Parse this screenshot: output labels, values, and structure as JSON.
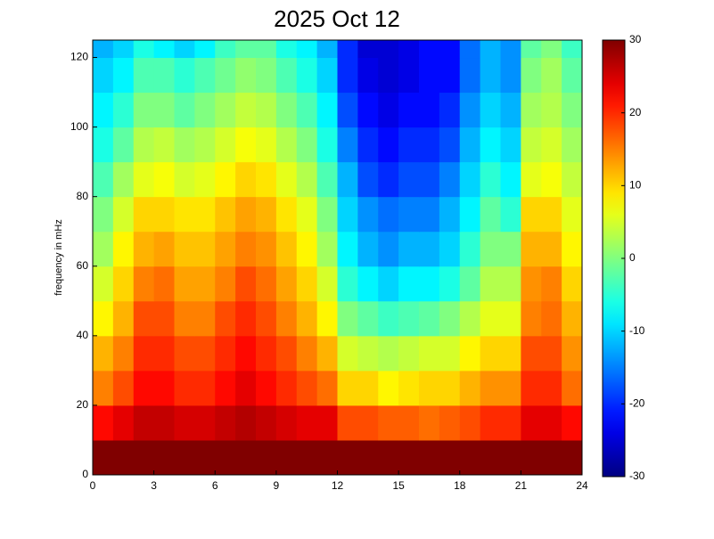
{
  "chart_data": {
    "type": "heatmap",
    "title": "2025 Oct 12",
    "y_label": "frequency in mHz",
    "xbins": [
      0,
      1,
      2,
      3,
      4,
      5,
      6,
      7,
      8,
      9,
      10,
      11,
      12,
      13,
      14,
      15,
      16,
      17,
      18,
      19,
      20,
      21,
      22,
      23,
      24
    ],
    "ybins": [
      0,
      10,
      20,
      30,
      40,
      50,
      60,
      70,
      80,
      90,
      100,
      110,
      120,
      125
    ],
    "values": [
      [
        30,
        30,
        30,
        30,
        30,
        30,
        30,
        30,
        30,
        30,
        30,
        30,
        30,
        30,
        30,
        30,
        30,
        30,
        30,
        30,
        30,
        30,
        30,
        30
      ],
      [
        22,
        24,
        26,
        26,
        25,
        25,
        26,
        27,
        26,
        25,
        24,
        24,
        18,
        18,
        17,
        17,
        16,
        17,
        18,
        20,
        20,
        24,
        24,
        22
      ],
      [
        15,
        18,
        22,
        22,
        20,
        20,
        22,
        24,
        22,
        20,
        18,
        16,
        10,
        10,
        8,
        9,
        10,
        10,
        12,
        14,
        14,
        20,
        20,
        16
      ],
      [
        12,
        15,
        20,
        20,
        18,
        18,
        20,
        22,
        20,
        18,
        15,
        12,
        5,
        4,
        3,
        4,
        5,
        5,
        8,
        10,
        10,
        18,
        18,
        14
      ],
      [
        8,
        12,
        18,
        18,
        15,
        15,
        18,
        20,
        18,
        15,
        12,
        8,
        0,
        -2,
        -4,
        -3,
        -2,
        0,
        3,
        6,
        6,
        15,
        16,
        12
      ],
      [
        5,
        10,
        15,
        16,
        13,
        13,
        15,
        18,
        16,
        13,
        10,
        5,
        -5,
        -8,
        -10,
        -8,
        -8,
        -6,
        -2,
        3,
        3,
        14,
        15,
        10
      ],
      [
        2,
        8,
        12,
        13,
        11,
        11,
        13,
        15,
        14,
        11,
        8,
        2,
        -8,
        -12,
        -14,
        -12,
        -12,
        -10,
        -5,
        0,
        0,
        12,
        12,
        8
      ],
      [
        0,
        5,
        10,
        10,
        9,
        9,
        11,
        13,
        12,
        9,
        6,
        0,
        -10,
        -14,
        -16,
        -15,
        -15,
        -12,
        -8,
        -2,
        -5,
        10,
        10,
        6
      ],
      [
        -3,
        2,
        6,
        7,
        5,
        6,
        8,
        10,
        9,
        6,
        3,
        -3,
        -12,
        -18,
        -20,
        -18,
        -18,
        -15,
        -10,
        -5,
        -8,
        6,
        7,
        4
      ],
      [
        -6,
        -2,
        3,
        4,
        2,
        3,
        5,
        7,
        6,
        3,
        0,
        -6,
        -15,
        -20,
        -22,
        -20,
        -20,
        -18,
        -12,
        -8,
        -10,
        4,
        5,
        2
      ],
      [
        -8,
        -5,
        0,
        0,
        -2,
        0,
        2,
        4,
        3,
        0,
        -3,
        -8,
        -18,
        -22,
        -24,
        -22,
        -22,
        -20,
        -14,
        -10,
        -12,
        2,
        3,
        0
      ],
      [
        -10,
        -8,
        -3,
        -3,
        -5,
        -3,
        -1,
        1,
        0,
        -3,
        -6,
        -10,
        -20,
        -24,
        -25,
        -24,
        -22,
        -22,
        -16,
        -12,
        -14,
        0,
        2,
        -2
      ],
      [
        -12,
        -10,
        -6,
        -8,
        -10,
        -8,
        -4,
        -2,
        -2,
        -6,
        -8,
        -12,
        -20,
        -25,
        -25,
        -24,
        -22,
        -22,
        -16,
        -12,
        -14,
        -2,
        0,
        -4
      ]
    ],
    "xlim": [
      0,
      24
    ],
    "xticks": [
      0,
      3,
      6,
      9,
      12,
      15,
      18,
      21,
      24
    ],
    "ylim": [
      0,
      125
    ],
    "yticks": [
      0,
      20,
      40,
      60,
      80,
      100,
      120
    ],
    "colormap": "jet",
    "clim": [
      -30,
      30
    ],
    "cticks": [
      -30,
      -20,
      -10,
      0,
      10,
      20,
      30
    ]
  }
}
